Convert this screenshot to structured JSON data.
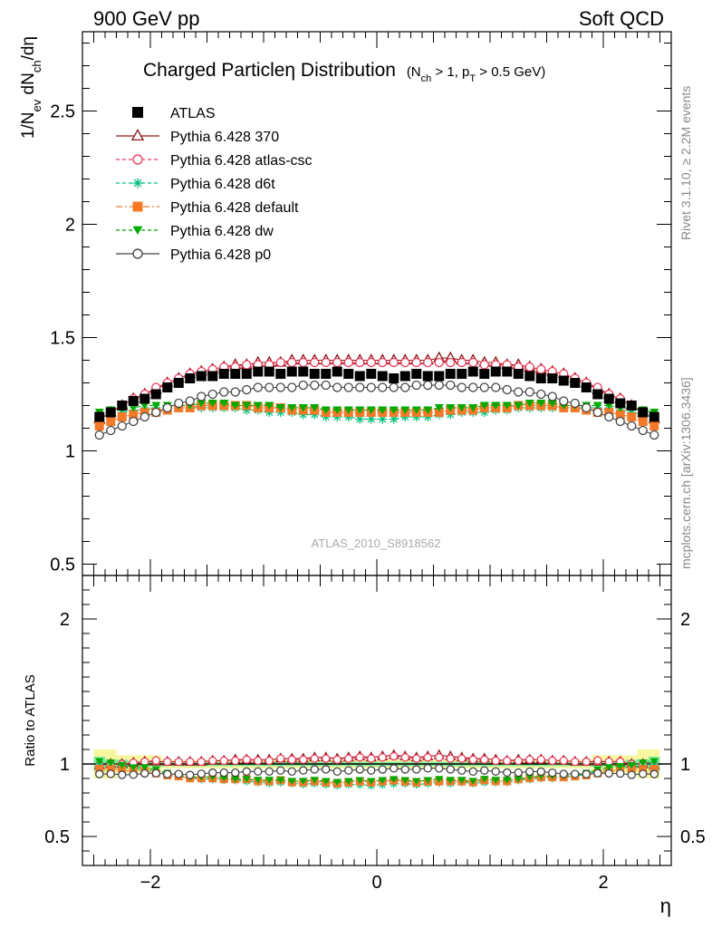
{
  "header": {
    "left": "900 GeV pp",
    "right": "Soft QCD"
  },
  "side": {
    "rivet": "Rivet 3.1.10, ≥ 2.2M events",
    "mcplots": "mcplots.cern.ch [arXiv:1306.3436]"
  },
  "chart_data": [
    {
      "type": "scatter",
      "title": "Charged Particleη Distribution",
      "subtitle": "(N_ch > 1, p_T > 0.5 GeV)",
      "ylabel": "1/N_ev dN_ch/dη",
      "xlabel": "η",
      "watermark": "ATLAS_2010_S8918562",
      "xlim": [
        -2.6,
        2.6
      ],
      "ylim": [
        0.45,
        2.85
      ],
      "yticks": [
        0.5,
        1,
        1.5,
        2,
        2.5
      ],
      "xticks": [
        -2,
        0,
        2
      ],
      "legend_position": "top-left",
      "x": [
        -2.45,
        -2.35,
        -2.25,
        -2.15,
        -2.05,
        -1.95,
        -1.85,
        -1.75,
        -1.65,
        -1.55,
        -1.45,
        -1.35,
        -1.25,
        -1.15,
        -1.05,
        -0.95,
        -0.85,
        -0.75,
        -0.65,
        -0.55,
        -0.45,
        -0.35,
        -0.25,
        -0.15,
        -0.05,
        0.05,
        0.15,
        0.25,
        0.35,
        0.45,
        0.55,
        0.65,
        0.75,
        0.85,
        0.95,
        1.05,
        1.15,
        1.25,
        1.35,
        1.45,
        1.55,
        1.65,
        1.75,
        1.85,
        1.95,
        2.05,
        2.15,
        2.25,
        2.35,
        2.45
      ],
      "series": [
        {
          "name": "ATLAS",
          "color": "#000000",
          "marker": "filled-square",
          "line": "none",
          "values": [
            1.15,
            1.17,
            1.2,
            1.22,
            1.23,
            1.25,
            1.28,
            1.3,
            1.32,
            1.33,
            1.33,
            1.34,
            1.34,
            1.34,
            1.35,
            1.35,
            1.34,
            1.35,
            1.35,
            1.34,
            1.34,
            1.35,
            1.34,
            1.33,
            1.34,
            1.33,
            1.32,
            1.33,
            1.34,
            1.33,
            1.33,
            1.34,
            1.34,
            1.35,
            1.34,
            1.35,
            1.35,
            1.34,
            1.33,
            1.32,
            1.32,
            1.31,
            1.3,
            1.28,
            1.25,
            1.23,
            1.21,
            1.2,
            1.17,
            1.15
          ]
        },
        {
          "name": "Pythia 6.428 370",
          "color": "#8b1a1a",
          "marker": "open-triangle",
          "line": "solid",
          "values": [
            1.14,
            1.17,
            1.2,
            1.23,
            1.25,
            1.27,
            1.3,
            1.32,
            1.34,
            1.35,
            1.36,
            1.37,
            1.38,
            1.38,
            1.39,
            1.39,
            1.39,
            1.4,
            1.4,
            1.4,
            1.4,
            1.4,
            1.4,
            1.4,
            1.4,
            1.4,
            1.4,
            1.4,
            1.4,
            1.4,
            1.41,
            1.41,
            1.4,
            1.4,
            1.39,
            1.39,
            1.38,
            1.38,
            1.37,
            1.36,
            1.35,
            1.34,
            1.32,
            1.3,
            1.27,
            1.25,
            1.23,
            1.2,
            1.17,
            1.14
          ]
        },
        {
          "name": "Pythia 6.428 atlas-csc",
          "color": "#ee3b5b",
          "marker": "open-circle",
          "line": "dashed",
          "values": [
            1.14,
            1.17,
            1.2,
            1.23,
            1.25,
            1.28,
            1.3,
            1.32,
            1.34,
            1.35,
            1.36,
            1.37,
            1.37,
            1.38,
            1.38,
            1.38,
            1.39,
            1.39,
            1.39,
            1.39,
            1.39,
            1.39,
            1.39,
            1.39,
            1.39,
            1.39,
            1.39,
            1.39,
            1.39,
            1.39,
            1.39,
            1.39,
            1.39,
            1.39,
            1.38,
            1.38,
            1.38,
            1.37,
            1.37,
            1.36,
            1.35,
            1.34,
            1.32,
            1.3,
            1.28,
            1.25,
            1.23,
            1.2,
            1.17,
            1.14
          ]
        },
        {
          "name": "Pythia 6.428 d6t",
          "color": "#00c07a",
          "marker": "asterisk",
          "line": "dashed",
          "values": [
            1.15,
            1.16,
            1.17,
            1.18,
            1.18,
            1.19,
            1.19,
            1.19,
            1.19,
            1.19,
            1.19,
            1.19,
            1.19,
            1.18,
            1.18,
            1.17,
            1.17,
            1.17,
            1.16,
            1.16,
            1.15,
            1.15,
            1.15,
            1.14,
            1.14,
            1.14,
            1.14,
            1.15,
            1.15,
            1.15,
            1.16,
            1.16,
            1.17,
            1.17,
            1.17,
            1.18,
            1.18,
            1.19,
            1.19,
            1.19,
            1.19,
            1.19,
            1.19,
            1.19,
            1.19,
            1.18,
            1.18,
            1.17,
            1.16,
            1.15
          ]
        },
        {
          "name": "Pythia 6.428 default",
          "color": "#f47a2a",
          "marker": "filled-square",
          "line": "dashdot",
          "values": [
            1.11,
            1.13,
            1.15,
            1.16,
            1.17,
            1.17,
            1.18,
            1.19,
            1.19,
            1.2,
            1.2,
            1.2,
            1.2,
            1.2,
            1.19,
            1.19,
            1.19,
            1.18,
            1.18,
            1.18,
            1.17,
            1.17,
            1.17,
            1.17,
            1.17,
            1.17,
            1.17,
            1.17,
            1.17,
            1.17,
            1.17,
            1.18,
            1.18,
            1.18,
            1.19,
            1.19,
            1.19,
            1.2,
            1.2,
            1.2,
            1.2,
            1.19,
            1.19,
            1.18,
            1.17,
            1.17,
            1.16,
            1.15,
            1.13,
            1.11
          ]
        },
        {
          "name": "Pythia 6.428 dw",
          "color": "#00aa00",
          "marker": "filled-triangle-down",
          "line": "dashed",
          "values": [
            1.17,
            1.18,
            1.19,
            1.19,
            1.2,
            1.2,
            1.2,
            1.2,
            1.2,
            1.21,
            1.21,
            1.21,
            1.2,
            1.2,
            1.2,
            1.2,
            1.19,
            1.19,
            1.19,
            1.19,
            1.18,
            1.18,
            1.18,
            1.18,
            1.18,
            1.18,
            1.18,
            1.18,
            1.18,
            1.18,
            1.19,
            1.19,
            1.19,
            1.19,
            1.2,
            1.2,
            1.2,
            1.2,
            1.21,
            1.21,
            1.21,
            1.2,
            1.2,
            1.2,
            1.2,
            1.2,
            1.19,
            1.19,
            1.18,
            1.17
          ]
        },
        {
          "name": "Pythia 6.428 p0",
          "color": "#444444",
          "marker": "open-circle",
          "line": "solid",
          "values": [
            1.07,
            1.09,
            1.11,
            1.13,
            1.15,
            1.17,
            1.19,
            1.21,
            1.22,
            1.24,
            1.25,
            1.26,
            1.26,
            1.27,
            1.28,
            1.28,
            1.28,
            1.28,
            1.29,
            1.29,
            1.29,
            1.28,
            1.28,
            1.28,
            1.28,
            1.28,
            1.28,
            1.28,
            1.29,
            1.29,
            1.29,
            1.29,
            1.28,
            1.28,
            1.28,
            1.28,
            1.27,
            1.26,
            1.26,
            1.25,
            1.24,
            1.22,
            1.21,
            1.19,
            1.17,
            1.15,
            1.13,
            1.11,
            1.09,
            1.07
          ]
        }
      ]
    },
    {
      "type": "scatter",
      "title": "",
      "ylabel": "Ratio to ATLAS",
      "xlabel": "η",
      "xlim": [
        -2.6,
        2.6
      ],
      "ylim": [
        0.3,
        2.3
      ],
      "yticks": [
        0.5,
        1,
        2
      ],
      "xticks": [
        -2,
        0,
        2
      ],
      "reference_line": 1,
      "uncertainty_bands": {
        "stat_color": "#7fe89a",
        "total_color": "#f7f7a0",
        "stat_halfwidth": [
          0.05,
          0.03,
          0.03,
          0.02,
          0.02,
          0.02,
          0.015,
          0.015,
          0.015,
          0.015,
          0.015,
          0.015,
          0.015,
          0.015,
          0.015,
          0.015,
          0.015,
          0.015,
          0.015,
          0.015,
          0.015,
          0.015,
          0.015,
          0.015,
          0.015,
          0.015,
          0.015,
          0.015,
          0.015,
          0.015,
          0.015,
          0.015,
          0.015,
          0.015,
          0.015,
          0.015,
          0.015,
          0.015,
          0.015,
          0.015,
          0.015,
          0.015,
          0.015,
          0.015,
          0.02,
          0.02,
          0.02,
          0.03,
          0.03,
          0.05
        ],
        "total_halfwidth": [
          0.1,
          0.1,
          0.06,
          0.06,
          0.06,
          0.06,
          0.03,
          0.03,
          0.03,
          0.03,
          0.03,
          0.03,
          0.03,
          0.03,
          0.03,
          0.03,
          0.03,
          0.03,
          0.03,
          0.03,
          0.03,
          0.03,
          0.03,
          0.03,
          0.03,
          0.03,
          0.03,
          0.03,
          0.03,
          0.03,
          0.03,
          0.03,
          0.03,
          0.03,
          0.03,
          0.03,
          0.03,
          0.03,
          0.03,
          0.03,
          0.03,
          0.03,
          0.03,
          0.03,
          0.06,
          0.06,
          0.06,
          0.06,
          0.1,
          0.1
        ]
      }
    }
  ]
}
